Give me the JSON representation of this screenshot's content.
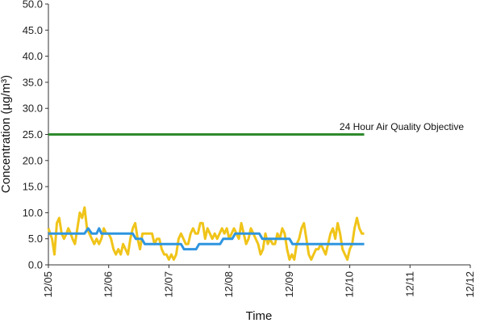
{
  "chart_data": {
    "type": "line",
    "xlabel": "Time",
    "ylabel": "Concentration (µg/m³)",
    "ylim": [
      0,
      50
    ],
    "yticks": [
      "0.0",
      "5.0",
      "10.0",
      "15.0",
      "20.0",
      "25.0",
      "30.0",
      "35.0",
      "40.0",
      "45.0",
      "50.0"
    ],
    "xlim": [
      0,
      7
    ],
    "xticks": [
      "12/05",
      "12/06",
      "12/07",
      "12/08",
      "12/09",
      "12/10",
      "12/11",
      "12/12"
    ],
    "grid": false,
    "annotation": {
      "text": "24 Hour Air Quality Objective",
      "y": 25
    },
    "series": [
      {
        "color": "#f0c419",
        "points": [
          [
            0.0,
            7
          ],
          [
            0.06,
            5
          ],
          [
            0.1,
            2
          ],
          [
            0.14,
            8
          ],
          [
            0.18,
            9
          ],
          [
            0.22,
            6
          ],
          [
            0.26,
            5
          ],
          [
            0.3,
            6
          ],
          [
            0.33,
            7
          ],
          [
            0.37,
            6
          ],
          [
            0.4,
            5
          ],
          [
            0.44,
            4
          ],
          [
            0.48,
            7
          ],
          [
            0.52,
            10
          ],
          [
            0.56,
            9
          ],
          [
            0.6,
            11
          ],
          [
            0.64,
            7
          ],
          [
            0.68,
            6
          ],
          [
            0.72,
            5
          ],
          [
            0.76,
            4
          ],
          [
            0.8,
            5
          ],
          [
            0.84,
            4
          ],
          [
            0.88,
            5
          ],
          [
            0.92,
            7
          ],
          [
            0.96,
            6
          ],
          [
            1.0,
            6
          ],
          [
            1.04,
            5
          ],
          [
            1.08,
            3
          ],
          [
            1.12,
            2
          ],
          [
            1.16,
            3
          ],
          [
            1.2,
            2
          ],
          [
            1.24,
            4
          ],
          [
            1.28,
            3
          ],
          [
            1.32,
            2
          ],
          [
            1.36,
            5
          ],
          [
            1.4,
            7
          ],
          [
            1.44,
            8
          ],
          [
            1.48,
            5
          ],
          [
            1.52,
            3
          ],
          [
            1.56,
            6
          ],
          [
            1.6,
            6
          ],
          [
            1.64,
            6
          ],
          [
            1.68,
            6
          ],
          [
            1.72,
            6
          ],
          [
            1.76,
            4
          ],
          [
            1.8,
            5
          ],
          [
            1.84,
            5
          ],
          [
            1.88,
            3
          ],
          [
            1.92,
            2
          ],
          [
            1.96,
            2
          ],
          [
            2.0,
            1
          ],
          [
            2.04,
            2
          ],
          [
            2.08,
            1
          ],
          [
            2.12,
            2
          ],
          [
            2.16,
            5
          ],
          [
            2.2,
            6
          ],
          [
            2.24,
            5
          ],
          [
            2.28,
            4
          ],
          [
            2.32,
            4
          ],
          [
            2.36,
            6
          ],
          [
            2.4,
            7
          ],
          [
            2.44,
            6
          ],
          [
            2.48,
            6
          ],
          [
            2.52,
            8
          ],
          [
            2.56,
            8
          ],
          [
            2.6,
            5
          ],
          [
            2.64,
            7
          ],
          [
            2.68,
            6
          ],
          [
            2.72,
            5
          ],
          [
            2.76,
            6
          ],
          [
            2.8,
            5
          ],
          [
            2.84,
            6
          ],
          [
            2.88,
            7
          ],
          [
            2.92,
            6
          ],
          [
            2.96,
            7
          ],
          [
            3.0,
            5
          ],
          [
            3.04,
            6
          ],
          [
            3.08,
            7
          ],
          [
            3.12,
            6
          ],
          [
            3.16,
            5
          ],
          [
            3.2,
            8
          ],
          [
            3.24,
            6
          ],
          [
            3.28,
            4
          ],
          [
            3.32,
            5
          ],
          [
            3.36,
            7
          ],
          [
            3.4,
            6
          ],
          [
            3.44,
            5
          ],
          [
            3.48,
            4
          ],
          [
            3.52,
            2
          ],
          [
            3.56,
            3
          ],
          [
            3.6,
            6
          ],
          [
            3.64,
            4
          ],
          [
            3.68,
            5
          ],
          [
            3.72,
            4
          ],
          [
            3.76,
            4
          ],
          [
            3.8,
            6
          ],
          [
            3.84,
            5
          ],
          [
            3.88,
            7
          ],
          [
            3.92,
            6
          ],
          [
            3.96,
            3
          ],
          [
            4.0,
            1
          ],
          [
            4.04,
            2
          ],
          [
            4.08,
            1
          ],
          [
            4.12,
            4
          ],
          [
            4.16,
            5
          ],
          [
            4.2,
            7
          ],
          [
            4.24,
            8
          ],
          [
            4.28,
            5
          ],
          [
            4.32,
            2
          ],
          [
            4.36,
            1
          ],
          [
            4.4,
            2
          ],
          [
            4.44,
            3
          ],
          [
            4.48,
            3
          ],
          [
            4.52,
            4
          ],
          [
            4.56,
            3
          ],
          [
            4.6,
            2
          ],
          [
            4.64,
            4
          ],
          [
            4.68,
            6
          ],
          [
            4.72,
            7
          ],
          [
            4.76,
            5
          ],
          [
            4.8,
            8
          ],
          [
            4.84,
            6
          ],
          [
            4.88,
            3
          ],
          [
            4.92,
            2
          ],
          [
            4.96,
            1
          ],
          [
            5.0,
            3
          ],
          [
            5.04,
            4
          ],
          [
            5.08,
            7
          ],
          [
            5.12,
            9
          ],
          [
            5.16,
            7
          ],
          [
            5.2,
            6
          ],
          [
            5.24,
            6
          ]
        ]
      },
      {
        "color": "#2e95e0",
        "points": [
          [
            0.0,
            6
          ],
          [
            0.6,
            6
          ],
          [
            0.66,
            7
          ],
          [
            0.72,
            6
          ],
          [
            0.8,
            6
          ],
          [
            0.84,
            7
          ],
          [
            0.88,
            6
          ],
          [
            1.18,
            6
          ],
          [
            1.4,
            6
          ],
          [
            1.45,
            5
          ],
          [
            1.55,
            5
          ],
          [
            1.6,
            4
          ],
          [
            2.0,
            4
          ],
          [
            2.2,
            4
          ],
          [
            2.25,
            3
          ],
          [
            2.45,
            3
          ],
          [
            2.5,
            4
          ],
          [
            2.85,
            4
          ],
          [
            2.9,
            5
          ],
          [
            3.05,
            5
          ],
          [
            3.1,
            6
          ],
          [
            3.4,
            6
          ],
          [
            3.5,
            6
          ],
          [
            3.55,
            5
          ],
          [
            4.0,
            5
          ],
          [
            4.05,
            4
          ],
          [
            4.55,
            4
          ],
          [
            5.24,
            4
          ]
        ]
      },
      {
        "color": "#2e8b2e",
        "points": [
          [
            0.0,
            25
          ],
          [
            5.24,
            25
          ]
        ]
      }
    ]
  }
}
